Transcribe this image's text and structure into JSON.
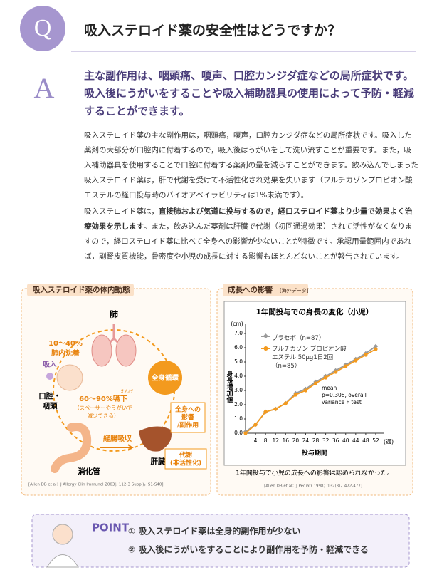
{
  "header": {
    "badge": "Q",
    "title": "吸入ステロイド薬の安全性はどうですか？"
  },
  "answer": {
    "badge": "A",
    "text": "主な副作用は、咽頭痛、嗄声、口腔カンジダ症などの局所症状です。吸入後にうがいをすることや吸入補助器具の使用によって予防・軽減することができます。"
  },
  "body": {
    "paragraphs": [
      [
        {
          "text": "吸入ステロイド薬の主な副作用は，咽頭痛，嗄声，口腔カンジダ症などの局所症状です。吸入した薬剤の大部分が口腔内に付着するので，吸入後はうがいをして洗い流すことが重要です。また，吸入補助器具を使用することで口腔に付着する薬剤の量を減らすことができます。飲み込んでしまった吸入ステロイド薬は，肝で代謝を受けて不活性化され効果を失います（フルチカゾンプロピオン酸エステルの経口投与時のバイオアベイラビリティは1%未満です）。",
          "bold": false
        }
      ],
      [
        {
          "text": "吸入ステロイド薬は，",
          "bold": false
        },
        {
          "text": "直接肺および気道に投与するので，経口ステロイド薬より少量で効果よく治療効果を示します",
          "bold": true
        },
        {
          "text": "。また，飲み込んだ薬剤は肝臓で代謝（初回通過効果）されて活性がなくなりますので，経口ステロイド薬に比べて全身への影響が少ないことが特徴です。承認用量範囲内であれば，副腎皮質機能，骨密度や小児の成長に対する影響もほとんどないことが報告されています。",
          "bold": false
        }
      ]
    ]
  },
  "diagram": {
    "title": "吸入ステロイド薬の体内動態",
    "lung": "肺",
    "deposit": [
      "10～40%",
      "肺内沈着"
    ],
    "inhale": "吸入",
    "mouth": [
      "口腔・",
      "咽頭"
    ],
    "swallow": "60～90%嚥下",
    "ruby": "えんげ",
    "swallow_note": [
      "（スペーサーやうがいで",
      "減少できる）"
    ],
    "circulation": "全身循環",
    "systemic": [
      "全身への",
      "影響",
      "/副作用"
    ],
    "absorb": "経腸吸収",
    "gut": "消化管",
    "liver": "肝臓",
    "metabolism": [
      "代謝",
      "(非活性化)"
    ],
    "reference": "[Allen DB et al：J Allergy Clin Immunol 2003；112(3 Suppl)，S1-S40]"
  },
  "growth_panel": {
    "title": "成長への影響",
    "tag": "[海外データ]",
    "caption": "1年間投与で小児の成長への影響は認められなかった。",
    "reference": "[Allen DB et al：J Pediatr 1998；132(3)，472-477]"
  },
  "chart_data": {
    "type": "line",
    "title": "1年間投与での身長の変化（小児）",
    "x": [
      0,
      4,
      8,
      12,
      16,
      20,
      24,
      28,
      32,
      36,
      40,
      44,
      48,
      52
    ],
    "series": [
      {
        "name": "プラセボ（n=87）",
        "color": "#9a9a9a",
        "marker": "diamond",
        "values": [
          0.1,
          0.6,
          1.5,
          1.7,
          2.1,
          2.8,
          3.1,
          3.6,
          4.0,
          4.4,
          4.8,
          5.2,
          5.6,
          6.1
        ]
      },
      {
        "name": "フルチカゾン プロピオン酸エステル 50μg1日2回（n=85）",
        "color": "#f39a1e",
        "marker": "circle",
        "values": [
          0.0,
          0.6,
          1.5,
          1.7,
          2.1,
          2.7,
          3.0,
          3.5,
          3.9,
          4.3,
          4.7,
          5.1,
          5.5,
          5.9
        ]
      }
    ],
    "xlim": [
      0,
      54
    ],
    "xticks": [
      4,
      8,
      12,
      16,
      20,
      24,
      28,
      32,
      36,
      40,
      44,
      48,
      52
    ],
    "ylim": [
      0,
      7.5
    ],
    "yticks": [
      {
        "value": 0,
        "label": "0.0"
      },
      {
        "value": 1,
        "label": "1.0"
      },
      {
        "value": 2,
        "label": "2.0"
      },
      {
        "value": 3,
        "label": "3.0"
      },
      {
        "value": 4,
        "label": "4.0"
      },
      {
        "value": 5,
        "label": "5.0"
      },
      {
        "value": 6,
        "label": "6.0"
      },
      {
        "value": 7,
        "label": "7.0"
      }
    ],
    "xlabel": "投与期間",
    "xunit": "(週)",
    "ylabel": "身長増加値",
    "yunit": "(cm)",
    "grid": false,
    "annotation": [
      "mean",
      "p=0.308, overall",
      "variance F test"
    ]
  },
  "point": {
    "label": "POINT",
    "items": [
      "① 吸入ステロイド薬は全身的副作用が少ない",
      "② 吸入後にうがいをすることにより副作用を予防・軽減できる"
    ]
  }
}
